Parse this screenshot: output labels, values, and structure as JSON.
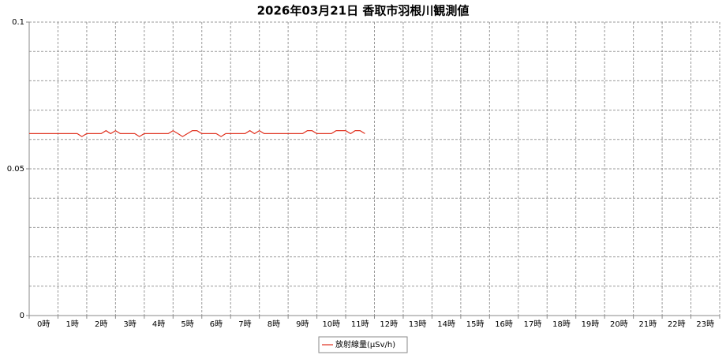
{
  "chart_data": {
    "type": "line",
    "title": "2026年03月21日 香取市羽根川観測値",
    "categories": [
      "0時",
      "1時",
      "2時",
      "3時",
      "4時",
      "5時",
      "6時",
      "7時",
      "8時",
      "9時",
      "10時",
      "11時",
      "12時",
      "13時",
      "14時",
      "15時",
      "16時",
      "17時",
      "18時",
      "19時",
      "20時",
      "21時",
      "22時",
      "23時"
    ],
    "xlim": [
      0,
      24
    ],
    "xticks": [
      0,
      1,
      2,
      3,
      4,
      5,
      6,
      7,
      8,
      9,
      10,
      11,
      12,
      13,
      14,
      15,
      16,
      17,
      18,
      19,
      20,
      21,
      22,
      23,
      24
    ],
    "x": [
      0,
      0.17,
      0.33,
      0.5,
      0.67,
      0.83,
      1,
      1.17,
      1.33,
      1.5,
      1.67,
      1.83,
      2,
      2.17,
      2.33,
      2.5,
      2.67,
      2.83,
      3,
      3.17,
      3.33,
      3.5,
      3.67,
      3.83,
      4,
      4.17,
      4.33,
      4.5,
      4.67,
      4.83,
      5,
      5.17,
      5.33,
      5.5,
      5.67,
      5.83,
      6,
      6.17,
      6.33,
      6.5,
      6.67,
      6.83,
      7,
      7.17,
      7.33,
      7.5,
      7.67,
      7.83,
      8,
      8.17,
      8.33,
      8.5,
      8.67,
      8.83,
      9,
      9.17,
      9.33,
      9.5,
      9.67,
      9.83,
      10,
      10.17,
      10.33,
      10.5,
      10.67,
      10.83,
      11,
      11.17,
      11.33,
      11.5,
      11.67
    ],
    "series": [
      {
        "name": "放射線量(μSv/h)",
        "color": "#e0301e",
        "values": [
          0.062,
          0.062,
          0.062,
          0.062,
          0.062,
          0.062,
          0.062,
          0.062,
          0.062,
          0.062,
          0.062,
          0.061,
          0.062,
          0.062,
          0.062,
          0.062,
          0.063,
          0.062,
          0.063,
          0.062,
          0.062,
          0.062,
          0.062,
          0.061,
          0.062,
          0.062,
          0.062,
          0.062,
          0.062,
          0.062,
          0.063,
          0.062,
          0.061,
          0.062,
          0.063,
          0.063,
          0.062,
          0.062,
          0.062,
          0.062,
          0.061,
          0.062,
          0.062,
          0.062,
          0.062,
          0.062,
          0.063,
          0.062,
          0.063,
          0.062,
          0.062,
          0.062,
          0.062,
          0.062,
          0.062,
          0.062,
          0.062,
          0.062,
          0.063,
          0.063,
          0.062,
          0.062,
          0.062,
          0.062,
          0.063,
          0.063,
          0.063,
          0.062,
          0.063,
          0.063,
          0.062
        ]
      }
    ],
    "ylim": [
      0,
      0.1
    ],
    "yticks": [
      0,
      0.05,
      0.1
    ],
    "ygrid": [
      0,
      0.01,
      0.02,
      0.03,
      0.04,
      0.05,
      0.06,
      0.07,
      0.08,
      0.09,
      0.1
    ],
    "grid": true,
    "legend": "bottom"
  }
}
